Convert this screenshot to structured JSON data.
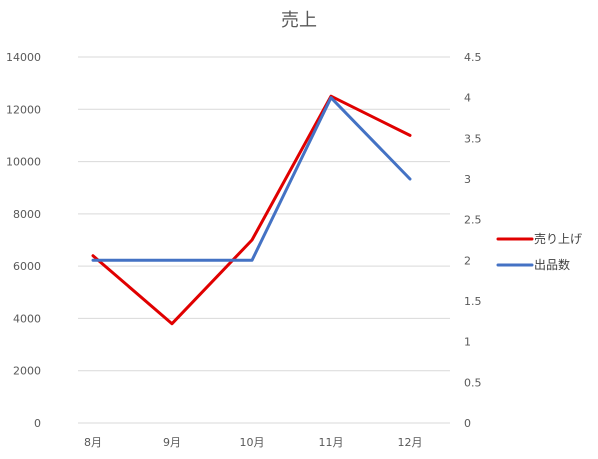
{
  "chart_data": {
    "type": "line",
    "title": "売上",
    "categories": [
      "8月",
      "9月",
      "10月",
      "11月",
      "12月"
    ],
    "series": [
      {
        "name": "売り上げ",
        "axis": "left",
        "color": "#e00000",
        "values": [
          6400,
          3800,
          7000,
          12500,
          11000
        ]
      },
      {
        "name": "出品数",
        "axis": "right",
        "color": "#4472c4",
        "values": [
          2,
          2,
          2,
          4,
          3
        ]
      }
    ],
    "y_left": {
      "min": 0,
      "max": 14000,
      "step": 2000,
      "ticks": [
        "0",
        "2000",
        "4000",
        "6000",
        "8000",
        "10000",
        "12000",
        "14000"
      ]
    },
    "y_right": {
      "min": 0,
      "max": 4.5,
      "step": 0.5,
      "ticks": [
        "0",
        "0.5",
        "1",
        "1.5",
        "2",
        "2.5",
        "3",
        "3.5",
        "4",
        "4.5"
      ]
    },
    "grid": true,
    "legend_position": "right"
  }
}
